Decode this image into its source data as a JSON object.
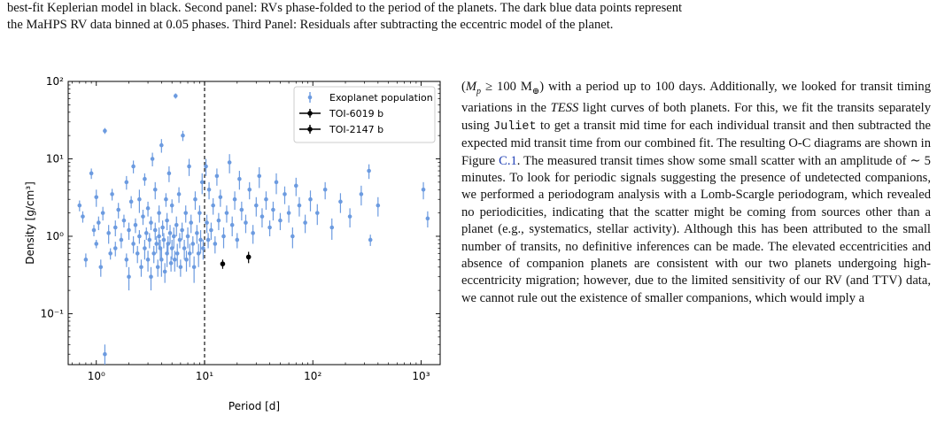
{
  "caption": {
    "line1": "best-fit Keplerian model in black. Second panel: RVs phase-folded to the period of the planets. The dark blue data points represent",
    "line2": "the MaHPS RV data binned at 0.05 phases. Third Panel: Residuals after subtracting the eccentric model of the planet."
  },
  "chart_data": {
    "type": "scatter",
    "xlabel": "Period [d]",
    "ylabel": "Density [g/cm³]",
    "xscale": "log",
    "yscale": "log",
    "xlim": [
      0.55,
      1500
    ],
    "ylim": [
      0.022,
      100
    ],
    "xticks": [
      {
        "label": "10⁰",
        "value": 1
      },
      {
        "label": "10¹",
        "value": 10
      },
      {
        "label": "10²",
        "value": 100
      },
      {
        "label": "10³",
        "value": 1000
      }
    ],
    "yticks": [
      {
        "label": "10⁻¹",
        "value": 0.1
      },
      {
        "label": "10⁰",
        "value": 1
      },
      {
        "label": "10¹",
        "value": 10
      },
      {
        "label": "10²",
        "value": 100
      }
    ],
    "vline": 10,
    "legend_position": "top-right",
    "colors": {
      "population": "#6c9be0",
      "highlight": "#000000"
    },
    "series": [
      {
        "name": "Exoplanet population",
        "color": "#6c9be0",
        "points": [
          [
            0.7,
            2.5,
            0.4
          ],
          [
            0.75,
            1.8,
            0.3
          ],
          [
            0.8,
            0.5,
            0.1
          ],
          [
            0.9,
            6.5,
            1.0
          ],
          [
            0.95,
            1.2,
            0.2
          ],
          [
            1.0,
            3.2,
            0.8
          ],
          [
            1.0,
            0.8,
            0.1
          ],
          [
            1.05,
            1.5,
            0.3
          ],
          [
            1.1,
            0.4,
            0.1
          ],
          [
            1.15,
            2.0,
            0.4
          ],
          [
            1.2,
            23,
            2
          ],
          [
            1.2,
            0.03,
            0.01
          ],
          [
            1.3,
            1.1,
            0.3
          ],
          [
            1.35,
            0.6,
            0.1
          ],
          [
            1.4,
            3.5,
            0.6
          ],
          [
            1.5,
            1.3,
            0.3
          ],
          [
            1.5,
            0.7,
            0.15
          ],
          [
            1.6,
            2.2,
            0.5
          ],
          [
            1.7,
            0.9,
            0.2
          ],
          [
            1.8,
            1.6,
            0.3
          ],
          [
            1.9,
            5.0,
            1.0
          ],
          [
            1.9,
            0.5,
            0.1
          ],
          [
            2.0,
            1.2,
            0.3
          ],
          [
            2.0,
            0.3,
            0.1
          ],
          [
            2.1,
            2.8,
            0.5
          ],
          [
            2.2,
            0.8,
            0.2
          ],
          [
            2.2,
            8.0,
            1.5
          ],
          [
            2.3,
            1.4,
            0.3
          ],
          [
            2.4,
            0.6,
            0.15
          ],
          [
            2.5,
            3.0,
            1.0
          ],
          [
            2.5,
            1.0,
            0.2
          ],
          [
            2.6,
            0.4,
            0.1
          ],
          [
            2.7,
            1.8,
            0.4
          ],
          [
            2.8,
            0.7,
            0.2
          ],
          [
            2.8,
            5.5,
            1.0
          ],
          [
            2.9,
            1.1,
            0.2
          ],
          [
            3.0,
            0.5,
            0.15
          ],
          [
            3.0,
            2.3,
            0.5
          ],
          [
            3.1,
            0.9,
            0.2
          ],
          [
            3.2,
            1.5,
            0.3
          ],
          [
            3.2,
            0.3,
            0.1
          ],
          [
            3.3,
            10,
            2
          ],
          [
            3.4,
            0.6,
            0.15
          ],
          [
            3.5,
            1.2,
            0.3
          ],
          [
            3.5,
            4.0,
            1.0
          ],
          [
            3.6,
            0.8,
            0.2
          ],
          [
            3.7,
            0.4,
            0.1
          ],
          [
            3.8,
            1.0,
            0.3
          ],
          [
            3.8,
            2.0,
            0.5
          ],
          [
            3.9,
            0.7,
            0.2
          ],
          [
            4.0,
            0.5,
            0.2
          ],
          [
            4.0,
            15,
            3
          ],
          [
            4.1,
            1.3,
            0.3
          ],
          [
            4.2,
            0.9,
            0.2
          ],
          [
            4.3,
            0.35,
            0.1
          ],
          [
            4.4,
            3.0,
            0.6
          ],
          [
            4.5,
            0.6,
            0.2
          ],
          [
            4.5,
            1.6,
            0.4
          ],
          [
            4.6,
            0.8,
            0.2
          ],
          [
            4.7,
            6.5,
            1.5
          ],
          [
            4.8,
            1.1,
            0.3
          ],
          [
            4.9,
            0.45,
            0.1
          ],
          [
            5.0,
            2.5,
            0.5
          ],
          [
            5.0,
            0.7,
            0.2
          ],
          [
            5.2,
            1.0,
            0.3
          ],
          [
            5.3,
            0.5,
            0.15
          ],
          [
            5.4,
            65,
            5
          ],
          [
            5.5,
            1.4,
            0.4
          ],
          [
            5.6,
            0.6,
            0.2
          ],
          [
            5.8,
            3.5,
            0.8
          ],
          [
            5.9,
            0.9,
            0.2
          ],
          [
            6.0,
            0.4,
            0.1
          ],
          [
            6.2,
            1.2,
            0.3
          ],
          [
            6.3,
            20,
            3
          ],
          [
            6.5,
            0.7,
            0.2
          ],
          [
            6.7,
            2.0,
            0.5
          ],
          [
            6.8,
            0.5,
            0.15
          ],
          [
            7.0,
            1.0,
            0.3
          ],
          [
            7.2,
            8.0,
            2.0
          ],
          [
            7.3,
            0.6,
            0.2
          ],
          [
            7.5,
            1.5,
            0.4
          ],
          [
            7.8,
            0.8,
            0.2
          ],
          [
            8.0,
            0.4,
            0.15
          ],
          [
            8.2,
            3.0,
            0.8
          ],
          [
            8.5,
            1.1,
            0.3
          ],
          [
            8.8,
            0.6,
            0.2
          ],
          [
            9.0,
            2.0,
            0.5
          ],
          [
            9.2,
            0.9,
            0.3
          ],
          [
            9.5,
            5.0,
            1.5
          ],
          [
            9.7,
            0.7,
            0.2
          ],
          [
            10.3,
            8.0,
            2.0
          ],
          [
            10.5,
            1.5,
            0.4
          ],
          [
            10.8,
            0.9,
            0.2
          ],
          [
            11.0,
            4.0,
            1.0
          ],
          [
            11.5,
            1.2,
            0.3
          ],
          [
            12.0,
            2.5,
            0.6
          ],
          [
            12.5,
            0.8,
            0.2
          ],
          [
            13.0,
            6.0,
            1.5
          ],
          [
            13.5,
            1.6,
            0.4
          ],
          [
            14.0,
            3.2,
            0.8
          ],
          [
            15.0,
            1.0,
            0.3
          ],
          [
            16.0,
            2.0,
            0.5
          ],
          [
            17.0,
            9.0,
            2.5
          ],
          [
            18.0,
            1.4,
            0.4
          ],
          [
            19.0,
            3.0,
            0.8
          ],
          [
            20.0,
            0.9,
            0.2
          ],
          [
            21.0,
            5.5,
            1.5
          ],
          [
            22.0,
            2.2,
            0.6
          ],
          [
            24.0,
            1.5,
            0.4
          ],
          [
            26.0,
            4.0,
            1.0
          ],
          [
            28.0,
            1.1,
            0.3
          ],
          [
            30.0,
            2.5,
            0.7
          ],
          [
            32.0,
            6.0,
            1.8
          ],
          [
            34.0,
            1.8,
            0.5
          ],
          [
            37.0,
            3.0,
            0.8
          ],
          [
            40.0,
            1.3,
            0.3
          ],
          [
            43.0,
            2.2,
            0.6
          ],
          [
            46.0,
            5.0,
            1.5
          ],
          [
            50.0,
            1.6,
            0.4
          ],
          [
            55.0,
            3.5,
            0.9
          ],
          [
            60.0,
            2.0,
            0.5
          ],
          [
            65.0,
            1.0,
            0.3
          ],
          [
            70.0,
            4.5,
            1.2
          ],
          [
            75.0,
            2.5,
            0.7
          ],
          [
            85.0,
            1.5,
            0.4
          ],
          [
            95.0,
            3.0,
            0.9
          ],
          [
            110.0,
            2.0,
            0.6
          ],
          [
            130.0,
            4.0,
            1.0
          ],
          [
            150.0,
            1.3,
            0.4
          ],
          [
            180.0,
            2.8,
            0.8
          ],
          [
            220.0,
            1.8,
            0.5
          ],
          [
            280.0,
            3.5,
            1.0
          ],
          [
            330.0,
            7.0,
            1.5
          ],
          [
            340.0,
            0.9,
            0.15
          ],
          [
            400.0,
            2.5,
            0.7
          ],
          [
            1050.0,
            4.0,
            1.0
          ],
          [
            1150.0,
            1.7,
            0.4
          ]
        ]
      },
      {
        "name": "TOI-6019 b",
        "color": "#000000",
        "points": [
          [
            14.7,
            0.44,
            0.06
          ]
        ]
      },
      {
        "name": "TOI-2147 b",
        "color": "#000000",
        "points": [
          [
            25.5,
            0.54,
            0.09
          ]
        ]
      }
    ]
  },
  "body": {
    "text_open": "(",
    "mp_symbol": "M",
    "mp_sub": "p",
    "mass_text": " ≥ 100 M",
    "earth_sub": "⊕",
    "t1": ") with a period up to 100 days. Additionally, we looked for transit timing variations in the ",
    "tess": "TESS",
    "t2": " light curves of both planets. For this, we fit the transits separately using ",
    "juliet": "Juliet",
    "t3": " to get a transit mid time for each individual transit and then subtracted the expected mid transit time from our combined fit. The resulting O-C diagrams are shown in Figure ",
    "fig_link": "C.1",
    "t4": ". The measured transit times show some small scatter with an amplitude of ∼ 5 minutes. To look for periodic signals suggesting the presence of undetected companions, we performed a periodogram analysis with a Lomb-Scargle periodogram, which revealed no periodicities, indicating that the scatter might be coming from sources other than a planet (e.g., systematics, stellar activity). Although this has been attributed to the small number of transits, no definitive inferences can be made. The elevated eccentricities and absence of companion planets are consistent with our two planets undergoing high-eccentricity migration; however, due to the limited sensitivity of our RV (and TTV) data, we cannot rule out the existence of smaller companions, which would imply a"
  }
}
